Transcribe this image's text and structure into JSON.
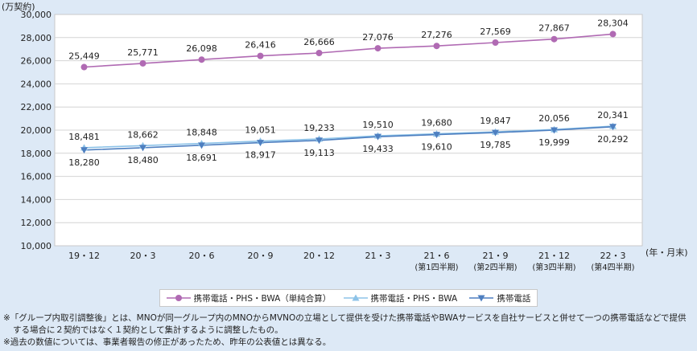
{
  "chart_data": {
    "type": "line",
    "ylabel": "(万契約)",
    "xlabel": "(年・月末)",
    "ylim": [
      10000,
      30000
    ],
    "yticks": [
      10000,
      12000,
      14000,
      16000,
      18000,
      20000,
      22000,
      24000,
      26000,
      28000,
      30000
    ],
    "ytick_labels": [
      "10,000",
      "12,000",
      "14,000",
      "16,000",
      "18,000",
      "20,000",
      "22,000",
      "24,000",
      "26,000",
      "28,000",
      "30,000"
    ],
    "grid": true,
    "categories": [
      "19・12",
      "20・3",
      "20・6",
      "20・9",
      "20・12",
      "21・3",
      "21・6",
      "21・9",
      "21・12",
      "22・3"
    ],
    "category_sublabels": [
      "",
      "",
      "",
      "",
      "",
      "",
      "(第1四半期)",
      "(第2四半期)",
      "(第3四半期)",
      "(第4四半期)"
    ],
    "series": [
      {
        "name": "携帯電話・PHS・BWA（単純合算）",
        "color": "#b06ab3",
        "marker": "circle",
        "values": [
          25449,
          25771,
          26098,
          26416,
          26666,
          27076,
          27276,
          27569,
          27867,
          28304
        ],
        "labels": [
          "25,449",
          "25,771",
          "26,098",
          "26,416",
          "26,666",
          "27,076",
          "27,276",
          "27,569",
          "27,867",
          "28,304"
        ],
        "label_position": "above"
      },
      {
        "name": "携帯電話・PHS・BWA",
        "color": "#8dc3e8",
        "marker": "triangle-up",
        "values": [
          18481,
          18662,
          18848,
          19051,
          19233,
          19510,
          19680,
          19847,
          20056,
          20341
        ],
        "labels": [
          "18,481",
          "18,662",
          "18,848",
          "19,051",
          "19,233",
          "19,510",
          "19,680",
          "19,847",
          "20,056",
          "20,341"
        ],
        "label_position": "above"
      },
      {
        "name": "携帯電話",
        "color": "#4e7fc0",
        "marker": "triangle-down",
        "values": [
          18280,
          18480,
          18691,
          18917,
          19113,
          19433,
          19610,
          19785,
          19999,
          20292
        ],
        "labels": [
          "18,280",
          "18,480",
          "18,691",
          "18,917",
          "19,113",
          "19,433",
          "19,610",
          "19,785",
          "19,999",
          "20,292"
        ],
        "label_position": "below"
      }
    ]
  },
  "notes": [
    "※「グループ内取引調整後」とは、MNOが同一グループ内のMNOからMVNOの立場として提供を受けた携帯電話やBWAサービスを自社サービスと併せて一つの携帯電話などで提供する場合に２契約ではなく１契約として集計するように調整したもの。",
    "※過去の数値については、事業者報告の修正があったため、昨年の公表値とは異なる。"
  ]
}
